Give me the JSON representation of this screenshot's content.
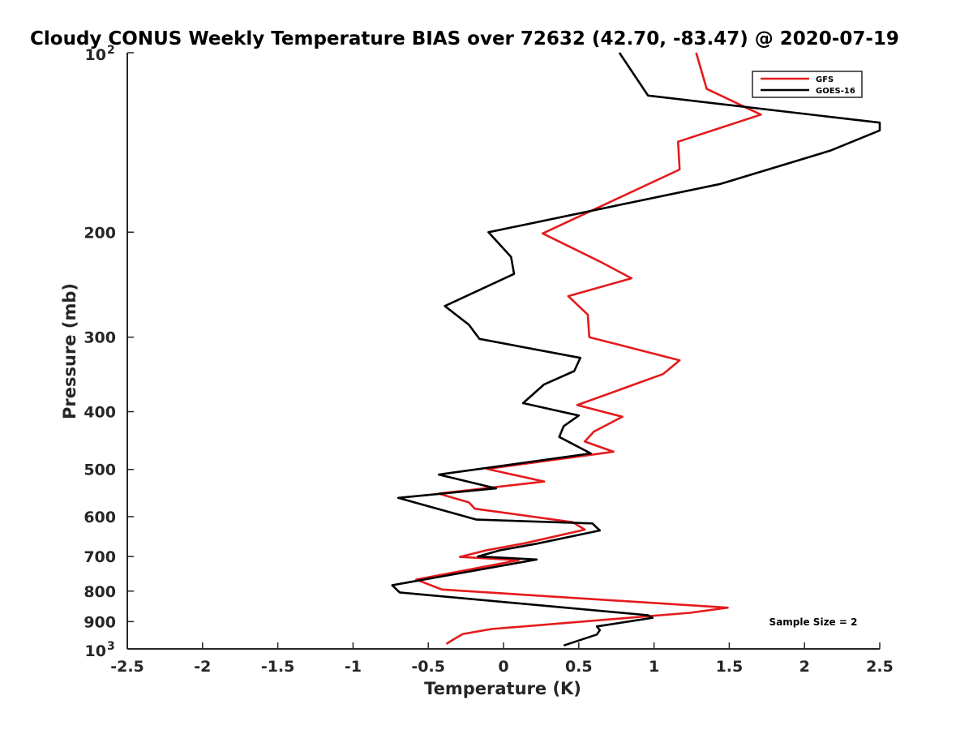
{
  "chart_data": {
    "type": "line",
    "title": "Cloudy CONUS Weekly Temperature BIAS over 72632 (42.70, -83.47) @ 2020-07-19",
    "xlabel": "Temperature (K)",
    "ylabel": "Pressure (mb)",
    "xlim": [
      -2.5,
      2.5
    ],
    "ylim": [
      100,
      1000
    ],
    "yscale": "log",
    "y_reversed": true,
    "xticks": [
      "-2.5",
      "-2",
      "-1.5",
      "-1",
      "-0.5",
      "0",
      "0.5",
      "1",
      "1.5",
      "2",
      "2.5"
    ],
    "yticks": [
      {
        "value": 100,
        "base": "10",
        "exp": "2"
      },
      {
        "value": 200,
        "label": "200"
      },
      {
        "value": 300,
        "label": "300"
      },
      {
        "value": 400,
        "label": "400"
      },
      {
        "value": 500,
        "label": "500"
      },
      {
        "value": 600,
        "label": "600"
      },
      {
        "value": 700,
        "label": "700"
      },
      {
        "value": 800,
        "label": "800"
      },
      {
        "value": 900,
        "label": "900"
      },
      {
        "value": 1000,
        "base": "10",
        "exp": "3"
      }
    ],
    "grid": false,
    "legend_position": "top-right",
    "annotation": "Sample Size = 2",
    "series": [
      {
        "name": "GFS",
        "color": "#e41a1c",
        "points": [
          [
            1.28,
            100
          ],
          [
            1.35,
            115
          ],
          [
            1.71,
            127
          ],
          [
            1.16,
            141
          ],
          [
            1.17,
            157
          ],
          [
            0.26,
            201
          ],
          [
            0.64,
            224
          ],
          [
            0.85,
            239
          ],
          [
            0.43,
            256
          ],
          [
            0.56,
            275
          ],
          [
            0.57,
            300
          ],
          [
            1.17,
            328
          ],
          [
            1.06,
            346
          ],
          [
            0.49,
            390
          ],
          [
            0.79,
            408
          ],
          [
            0.6,
            432
          ],
          [
            0.54,
            449
          ],
          [
            0.73,
            467
          ],
          [
            -0.11,
            499
          ],
          [
            0.27,
            524
          ],
          [
            -0.43,
            549
          ],
          [
            -0.23,
            568
          ],
          [
            -0.19,
            582
          ],
          [
            0.46,
            613
          ],
          [
            0.54,
            631
          ],
          [
            0.14,
            665
          ],
          [
            -0.11,
            683
          ],
          [
            -0.29,
            701
          ],
          [
            0.1,
            710
          ],
          [
            -0.58,
            765
          ],
          [
            -0.41,
            795
          ],
          [
            1.49,
            853
          ],
          [
            1.24,
            870
          ],
          [
            -0.08,
            926
          ],
          [
            -0.27,
            944
          ],
          [
            -0.33,
            963
          ],
          [
            -0.38,
            981
          ]
        ]
      },
      {
        "name": "GOES-16",
        "color": "#000000",
        "points": [
          [
            0.77,
            100
          ],
          [
            0.96,
            118
          ],
          [
            2.5,
            131
          ],
          [
            2.5,
            135
          ],
          [
            2.17,
            146
          ],
          [
            1.44,
            166
          ],
          [
            -0.1,
            200
          ],
          [
            0.05,
            220
          ],
          [
            0.07,
            235
          ],
          [
            -0.39,
            266
          ],
          [
            -0.23,
            286
          ],
          [
            -0.16,
            302
          ],
          [
            0.51,
            325
          ],
          [
            0.47,
            342
          ],
          [
            0.27,
            360
          ],
          [
            0.13,
            387
          ],
          [
            0.5,
            406
          ],
          [
            0.4,
            423
          ],
          [
            0.37,
            441
          ],
          [
            0.58,
            470
          ],
          [
            -0.43,
            510
          ],
          [
            -0.05,
            538
          ],
          [
            -0.7,
            558
          ],
          [
            -0.18,
            607
          ],
          [
            0.59,
            616
          ],
          [
            0.64,
            633
          ],
          [
            0.22,
            666
          ],
          [
            -0.02,
            683
          ],
          [
            -0.17,
            700
          ],
          [
            0.22,
            708
          ],
          [
            -0.74,
            782
          ],
          [
            -0.69,
            804
          ],
          [
            0.96,
            878
          ],
          [
            0.99,
            887
          ],
          [
            0.62,
            917
          ],
          [
            0.64,
            930
          ],
          [
            0.62,
            946
          ],
          [
            0.4,
            987
          ]
        ]
      }
    ]
  }
}
